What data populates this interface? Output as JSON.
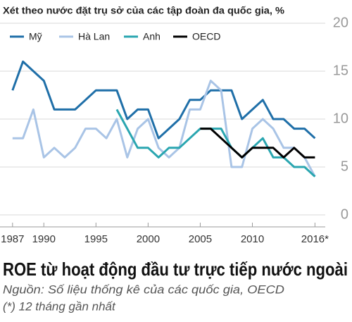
{
  "chart_data": {
    "type": "line",
    "subtitle": "Xét theo nước đặt trụ sở của các tập đoàn đa quốc gia, %",
    "title": "ROE từ hoạt động đầu tư trực tiếp nước ngoài",
    "source": "Nguồn: Số liệu thống kê của các quốc gia, OECD",
    "note": "(*) 12 tháng gần nhất",
    "x": [
      1987,
      1988,
      1989,
      1990,
      1991,
      1992,
      1993,
      1994,
      1995,
      1996,
      1997,
      1998,
      1999,
      2000,
      2001,
      2002,
      2003,
      2004,
      2005,
      2006,
      2007,
      2008,
      2009,
      2010,
      2011,
      2012,
      2013,
      2014,
      2015,
      2016
    ],
    "series": [
      {
        "name": "Mỹ",
        "color": "#1f6fa8",
        "values": [
          13,
          16,
          15,
          14,
          11,
          11,
          11,
          12,
          13,
          13,
          13,
          10,
          11,
          11,
          8,
          9,
          10,
          12,
          12,
          13,
          13,
          13,
          10,
          11,
          12,
          10,
          10,
          9,
          9,
          8
        ]
      },
      {
        "name": "Hà Lan",
        "color": "#a9c4e6",
        "values": [
          8,
          8,
          11,
          6,
          7,
          6,
          7,
          9,
          9,
          8,
          10,
          6,
          9,
          10,
          7,
          6,
          7,
          11,
          11,
          14,
          13,
          5,
          5,
          9,
          10,
          9,
          7,
          7,
          6,
          4
        ]
      },
      {
        "name": "Anh",
        "color": "#2aa6b0",
        "values": [
          null,
          null,
          null,
          null,
          null,
          null,
          null,
          null,
          null,
          null,
          11,
          9,
          7,
          7,
          6,
          7,
          7,
          8,
          9,
          9,
          9,
          7,
          6,
          7,
          8,
          6,
          6,
          5,
          5,
          4
        ]
      },
      {
        "name": "OECD",
        "color": "#000000",
        "values": [
          null,
          null,
          null,
          null,
          null,
          null,
          null,
          null,
          null,
          null,
          null,
          null,
          null,
          null,
          null,
          null,
          null,
          null,
          9,
          9,
          8,
          7,
          6,
          7,
          7,
          7,
          6,
          7,
          6,
          6
        ]
      }
    ],
    "xlim": [
      1986,
      2018
    ],
    "xticks": [
      1987,
      1990,
      1995,
      2000,
      2005,
      2010,
      {
        "value": 2016,
        "label": "2016*"
      }
    ],
    "ylim": [
      0,
      20
    ],
    "yticks": [
      0,
      5,
      10,
      15,
      20
    ],
    "grid": true
  }
}
